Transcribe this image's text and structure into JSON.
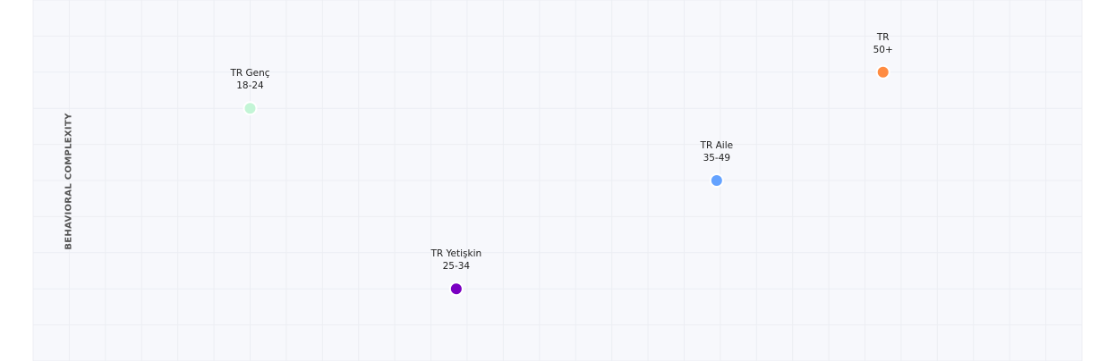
{
  "chart_data": {
    "type": "scatter",
    "title": "",
    "xlabel": "",
    "ylabel": "BEHAVIORAL COMPLEXITY",
    "xlim": [
      0,
      29
    ],
    "ylim": [
      0,
      10
    ],
    "grid": true,
    "background": "#f7f8fc",
    "grid_color": "#eceef3",
    "points": [
      {
        "name": "TR Genç",
        "sub": "18-24",
        "x": 6.0,
        "y": 7.0,
        "color": "#c3f5d6"
      },
      {
        "name": "TR Yetişkin",
        "sub": "25-34",
        "x": 11.7,
        "y": 2.0,
        "color": "#7a00c2"
      },
      {
        "name": "TR Aile",
        "sub": "35-49",
        "x": 18.9,
        "y": 5.0,
        "color": "#64a2ff"
      },
      {
        "name": "TR",
        "sub": "50+",
        "x": 23.5,
        "y": 8.0,
        "color": "#ff8c42"
      }
    ]
  }
}
